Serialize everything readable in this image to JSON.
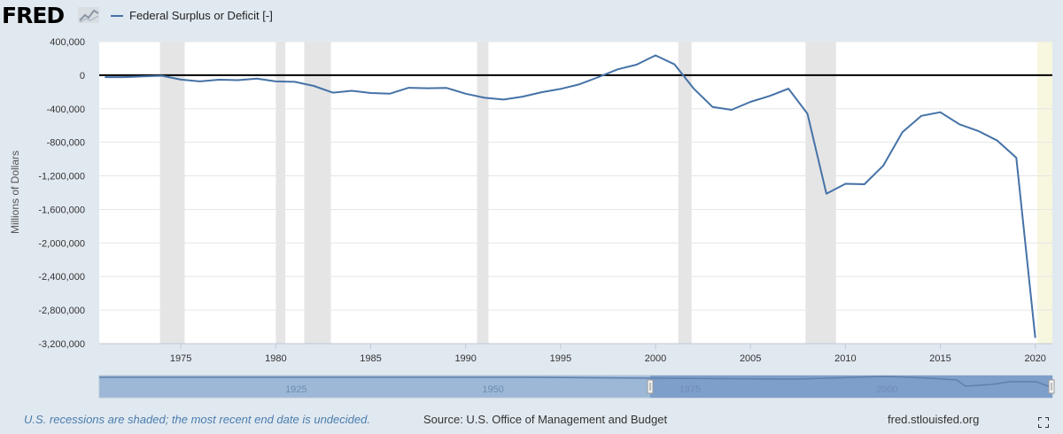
{
  "header": {
    "logo_text": "FRED",
    "logo_icon": "fred-chart-icon",
    "legend_label": "Federal Surplus or Deficit [-]",
    "legend_color": "#4572a7"
  },
  "footer": {
    "note": "U.S. recessions are shaded; the most recent end date is undecided.",
    "source": "Source: U.S. Office of Management and Budget",
    "site": "fred.stlouisfed.org",
    "fullscreen_icon": "fullscreen-icon"
  },
  "chart_data": {
    "type": "line",
    "ylabel": "Millions of Dollars",
    "xlabel": "",
    "title": "",
    "xlim": [
      1970.7,
      2020.9
    ],
    "ylim": [
      -3200000,
      400000
    ],
    "yticks": [
      400000,
      0,
      -400000,
      -800000,
      -1200000,
      -1600000,
      -2000000,
      -2400000,
      -2800000,
      -3200000
    ],
    "ytick_labels": [
      "400,000",
      "0",
      "-400,000",
      "-800,000",
      "-1,200,000",
      "-1,600,000",
      "-2,000,000",
      "-2,400,000",
      "-2,800,000",
      "-3,200,000"
    ],
    "xticks": [
      1975,
      1980,
      1985,
      1990,
      1995,
      2000,
      2005,
      2010,
      2015,
      2020
    ],
    "xtick_labels": [
      "1975",
      "1980",
      "1985",
      "1990",
      "1995",
      "2000",
      "2005",
      "2010",
      "2015",
      "2020"
    ],
    "grid": true,
    "line_color": "#4572a7",
    "series": [
      {
        "name": "Federal Surplus or Deficit [-]",
        "x": [
          1971,
          1972,
          1973,
          1974,
          1975,
          1976,
          1977,
          1978,
          1979,
          1980,
          1981,
          1982,
          1983,
          1984,
          1985,
          1986,
          1987,
          1988,
          1989,
          1990,
          1991,
          1992,
          1993,
          1994,
          1995,
          1996,
          1997,
          1998,
          1999,
          2000,
          2001,
          2002,
          2003,
          2004,
          2005,
          2006,
          2007,
          2008,
          2009,
          2010,
          2011,
          2012,
          2013,
          2014,
          2015,
          2016,
          2017,
          2018,
          2019,
          2020
        ],
        "values": [
          -23000,
          -23400,
          -14900,
          -6100,
          -53200,
          -73700,
          -53700,
          -59200,
          -40700,
          -73800,
          -79000,
          -128000,
          -207800,
          -185400,
          -212300,
          -221200,
          -149700,
          -155200,
          -152600,
          -221000,
          -269200,
          -290300,
          -255100,
          -203200,
          -164000,
          -107400,
          -21900,
          69300,
          125600,
          236200,
          128200,
          -157800,
          -377600,
          -412700,
          -318300,
          -248200,
          -160700,
          -458600,
          -1412700,
          -1294400,
          -1299600,
          -1077000,
          -679800,
          -484600,
          -441900,
          -584600,
          -665400,
          -779100,
          -983600,
          -3131900
        ]
      }
    ],
    "recessions": [
      [
        1973.9,
        1975.2
      ],
      [
        1980.0,
        1980.5
      ],
      [
        1981.5,
        1982.9
      ],
      [
        1990.6,
        1991.2
      ],
      [
        2001.2,
        2001.9
      ],
      [
        2007.9,
        2009.5
      ],
      [
        2020.1,
        2020.9
      ]
    ],
    "recession_color": "#e5e5e5",
    "current_recession_color": "#f7f7e0",
    "navigator": {
      "labels": [
        "1925",
        "1950",
        "1975",
        "2000"
      ]
    }
  }
}
